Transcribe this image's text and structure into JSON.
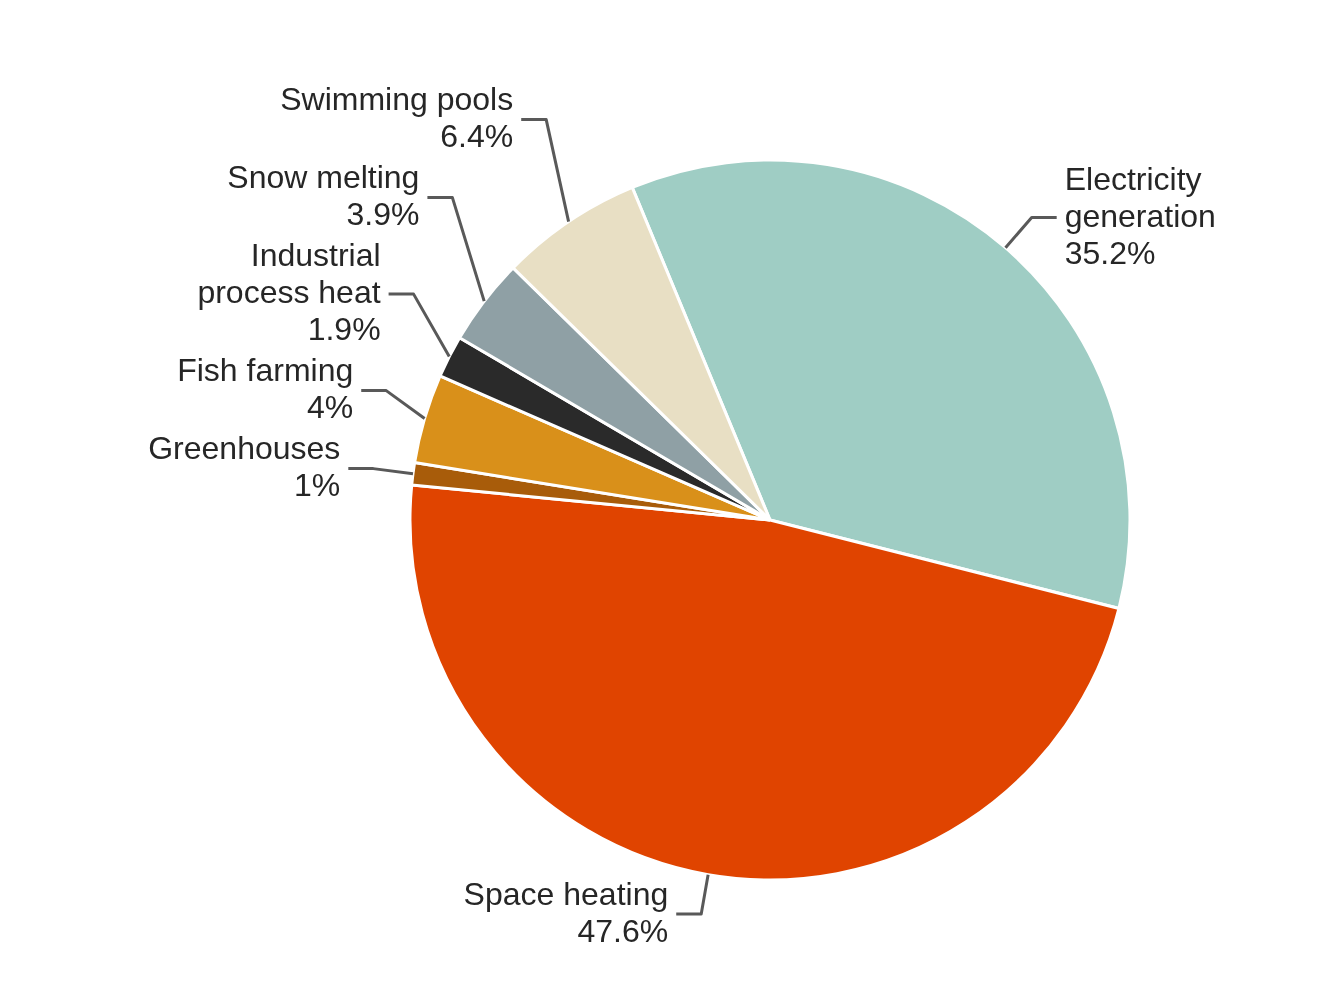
{
  "chart_data": {
    "type": "pie",
    "categories": [
      "Electricity generation",
      "Space heating",
      "Greenhouses",
      "Fish farming",
      "Industrial process heat",
      "Snow melting",
      "Swimming pools"
    ],
    "values": [
      35.2,
      47.6,
      1,
      4,
      1.9,
      3.9,
      6.4
    ],
    "colors": [
      "#9fcdc4",
      "#e04400",
      "#a85c0a",
      "#d9901a",
      "#2a2a2a",
      "#8fa0a5",
      "#e8dfc4"
    ],
    "value_labels": [
      "35.2%",
      "47.6%",
      "1%",
      "4%",
      "1.9%",
      "3.9%",
      "6.4%"
    ]
  }
}
